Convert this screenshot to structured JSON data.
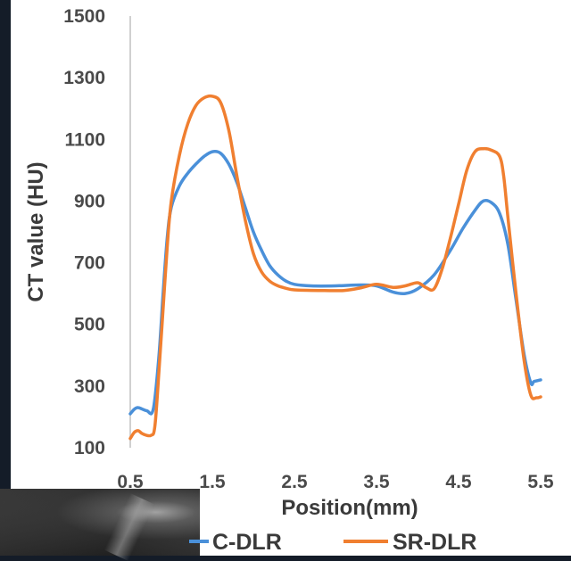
{
  "chart_data": {
    "type": "line",
    "xlabel": "Position(mm)",
    "ylabel": "CT value (HU)",
    "xlim": [
      0.5,
      5.5
    ],
    "ylim": [
      100,
      1500
    ],
    "x_ticks": [
      "0.5",
      "1.5",
      "2.5",
      "3.5",
      "4.5",
      "5.5"
    ],
    "y_ticks": [
      "100",
      "300",
      "500",
      "700",
      "900",
      "1100",
      "1300",
      "1500"
    ],
    "grid": false,
    "legend_position": "bottom",
    "series": [
      {
        "name": "C-DLR",
        "color": "#4a90d9",
        "points": [
          [
            0.5,
            210
          ],
          [
            0.55,
            225
          ],
          [
            0.6,
            230
          ],
          [
            0.7,
            220
          ],
          [
            0.78,
            225
          ],
          [
            0.85,
            400
          ],
          [
            0.9,
            600
          ],
          [
            0.95,
            780
          ],
          [
            1.0,
            880
          ],
          [
            1.1,
            950
          ],
          [
            1.2,
            990
          ],
          [
            1.3,
            1020
          ],
          [
            1.4,
            1045
          ],
          [
            1.5,
            1060
          ],
          [
            1.6,
            1055
          ],
          [
            1.7,
            1020
          ],
          [
            1.8,
            960
          ],
          [
            1.9,
            880
          ],
          [
            2.0,
            800
          ],
          [
            2.1,
            740
          ],
          [
            2.2,
            690
          ],
          [
            2.3,
            660
          ],
          [
            2.4,
            640
          ],
          [
            2.5,
            630
          ],
          [
            2.7,
            625
          ],
          [
            3.0,
            625
          ],
          [
            3.3,
            628
          ],
          [
            3.5,
            625
          ],
          [
            3.7,
            605
          ],
          [
            3.85,
            600
          ],
          [
            4.0,
            615
          ],
          [
            4.2,
            660
          ],
          [
            4.4,
            740
          ],
          [
            4.55,
            810
          ],
          [
            4.7,
            870
          ],
          [
            4.8,
            900
          ],
          [
            4.9,
            895
          ],
          [
            5.0,
            860
          ],
          [
            5.1,
            760
          ],
          [
            5.2,
            580
          ],
          [
            5.3,
            400
          ],
          [
            5.38,
            310
          ],
          [
            5.42,
            315
          ],
          [
            5.5,
            320
          ]
        ]
      },
      {
        "name": "SR-DLR",
        "color": "#f07f30",
        "points": [
          [
            0.5,
            130
          ],
          [
            0.55,
            150
          ],
          [
            0.6,
            155
          ],
          [
            0.65,
            145
          ],
          [
            0.75,
            140
          ],
          [
            0.8,
            170
          ],
          [
            0.85,
            350
          ],
          [
            0.9,
            550
          ],
          [
            0.95,
            750
          ],
          [
            1.0,
            900
          ],
          [
            1.1,
            1050
          ],
          [
            1.2,
            1150
          ],
          [
            1.3,
            1210
          ],
          [
            1.4,
            1235
          ],
          [
            1.5,
            1240
          ],
          [
            1.6,
            1220
          ],
          [
            1.7,
            1130
          ],
          [
            1.8,
            980
          ],
          [
            1.9,
            840
          ],
          [
            2.0,
            730
          ],
          [
            2.1,
            670
          ],
          [
            2.2,
            640
          ],
          [
            2.3,
            625
          ],
          [
            2.4,
            617
          ],
          [
            2.5,
            612
          ],
          [
            2.8,
            610
          ],
          [
            3.1,
            610
          ],
          [
            3.3,
            618
          ],
          [
            3.5,
            630
          ],
          [
            3.7,
            620
          ],
          [
            3.85,
            625
          ],
          [
            4.0,
            635
          ],
          [
            4.1,
            620
          ],
          [
            4.2,
            615
          ],
          [
            4.3,
            680
          ],
          [
            4.4,
            780
          ],
          [
            4.5,
            890
          ],
          [
            4.6,
            1000
          ],
          [
            4.7,
            1060
          ],
          [
            4.8,
            1070
          ],
          [
            4.9,
            1065
          ],
          [
            5.0,
            1045
          ],
          [
            5.05,
            980
          ],
          [
            5.1,
            850
          ],
          [
            5.2,
            600
          ],
          [
            5.3,
            380
          ],
          [
            5.38,
            270
          ],
          [
            5.45,
            262
          ],
          [
            5.5,
            265
          ]
        ]
      }
    ]
  }
}
